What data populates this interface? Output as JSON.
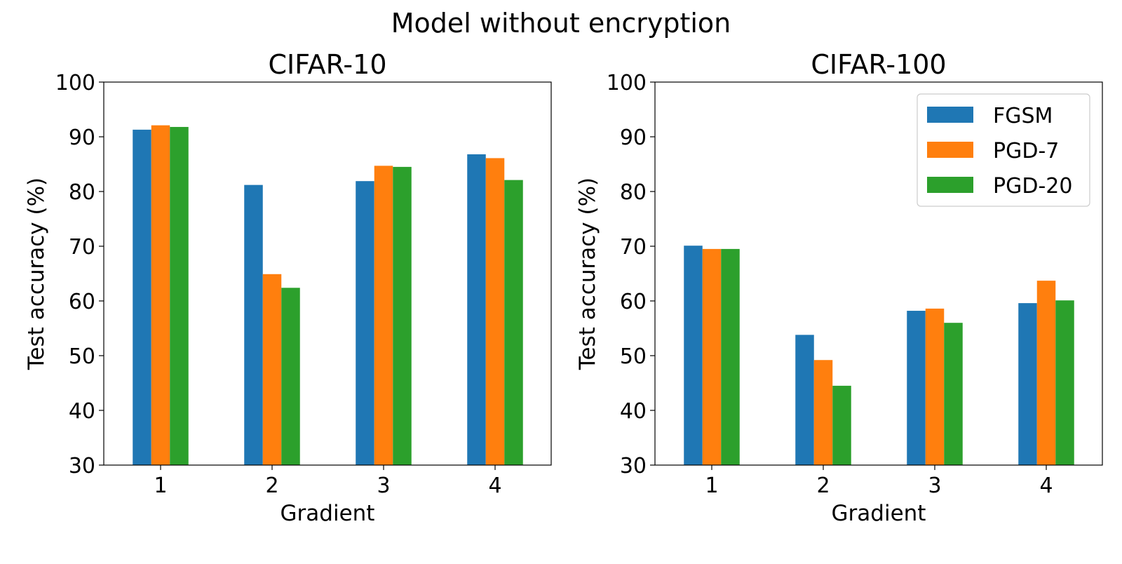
{
  "figure": {
    "title": "Model without encryption"
  },
  "chart_data": [
    {
      "type": "bar",
      "title": "CIFAR-10",
      "xlabel": "Gradient",
      "ylabel": "Test accuracy (%)",
      "categories": [
        "1",
        "2",
        "3",
        "4"
      ],
      "ylim": [
        30,
        100
      ],
      "yticks": [
        "30",
        "40",
        "50",
        "60",
        "70",
        "80",
        "90",
        "100"
      ],
      "grid": false,
      "legend": null,
      "series": [
        {
          "name": "FGSM",
          "color": "#1f77b4",
          "values": [
            91.3,
            81.2,
            81.9,
            86.8
          ]
        },
        {
          "name": "PGD-7",
          "color": "#ff7f0e",
          "values": [
            92.1,
            64.9,
            84.7,
            86.1
          ]
        },
        {
          "name": "PGD-20",
          "color": "#2ca02c",
          "values": [
            91.8,
            62.4,
            84.5,
            82.1
          ]
        }
      ]
    },
    {
      "type": "bar",
      "title": "CIFAR-100",
      "xlabel": "Gradient",
      "ylabel": "Test accuracy (%)",
      "categories": [
        "1",
        "2",
        "3",
        "4"
      ],
      "ylim": [
        30,
        100
      ],
      "yticks": [
        "30",
        "40",
        "50",
        "60",
        "70",
        "80",
        "90",
        "100"
      ],
      "grid": false,
      "legend": "top-right",
      "series": [
        {
          "name": "FGSM",
          "color": "#1f77b4",
          "values": [
            70.1,
            53.8,
            58.2,
            59.6
          ]
        },
        {
          "name": "PGD-7",
          "color": "#ff7f0e",
          "values": [
            69.5,
            49.2,
            58.6,
            63.7
          ]
        },
        {
          "name": "PGD-20",
          "color": "#2ca02c",
          "values": [
            69.5,
            44.5,
            56.0,
            60.1
          ]
        }
      ]
    }
  ]
}
